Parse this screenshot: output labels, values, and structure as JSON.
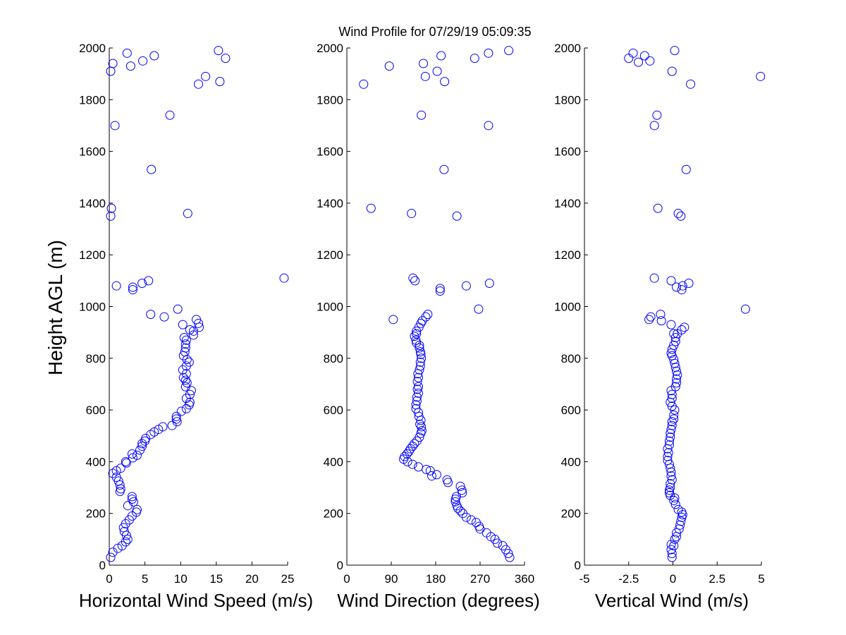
{
  "figure": {
    "title": "Wind Profile for  07/29/19 05:09:35",
    "ylabel": "Height AGL (m)"
  },
  "chart_data": [
    {
      "type": "scatter",
      "id": "speed",
      "xlabel": "Horizontal Wind Speed (m/s)",
      "ylabel": "Height AGL (m)",
      "xlim": [
        0,
        25
      ],
      "ylim": [
        0,
        2000
      ],
      "xticks": [
        0,
        5,
        10,
        15,
        20,
        25
      ],
      "xticklabels": [
        "0",
        "5",
        "10",
        "15",
        "20",
        "25"
      ],
      "yticks": [
        0,
        200,
        400,
        600,
        800,
        1000,
        1200,
        1400,
        1600,
        1800,
        2000
      ],
      "yticklabels": [
        "0",
        "200",
        "400",
        "600",
        "800",
        "1000",
        "1200",
        "1400",
        "1600",
        "1800",
        "2000"
      ],
      "points": [
        [
          0.2,
          30
        ],
        [
          0.5,
          50
        ],
        [
          1.2,
          65
        ],
        [
          1.8,
          75
        ],
        [
          2.3,
          90
        ],
        [
          2.6,
          100
        ],
        [
          2.4,
          115
        ],
        [
          2.1,
          130
        ],
        [
          2.0,
          145
        ],
        [
          2.3,
          160
        ],
        [
          2.8,
          175
        ],
        [
          3.2,
          190
        ],
        [
          3.8,
          205
        ],
        [
          3.9,
          215
        ],
        [
          2.6,
          230
        ],
        [
          3.4,
          245
        ],
        [
          3.2,
          255
        ],
        [
          3.2,
          265
        ],
        [
          1.5,
          285
        ],
        [
          1.6,
          295
        ],
        [
          1.5,
          310
        ],
        [
          1.3,
          325
        ],
        [
          1.0,
          340
        ],
        [
          0.5,
          355
        ],
        [
          1.0,
          365
        ],
        [
          1.6,
          375
        ],
        [
          2.4,
          395
        ],
        [
          2.3,
          400
        ],
        [
          3.3,
          415
        ],
        [
          3.9,
          425
        ],
        [
          3.2,
          430
        ],
        [
          4.3,
          445
        ],
        [
          4.6,
          460
        ],
        [
          4.6,
          470
        ],
        [
          5.0,
          480
        ],
        [
          5.1,
          490
        ],
        [
          5.8,
          505
        ],
        [
          6.3,
          515
        ],
        [
          6.9,
          525
        ],
        [
          7.5,
          535
        ],
        [
          8.8,
          540
        ],
        [
          9.5,
          555
        ],
        [
          9.4,
          565
        ],
        [
          9.4,
          575
        ],
        [
          10.1,
          595
        ],
        [
          10.8,
          605
        ],
        [
          11.2,
          620
        ],
        [
          11.3,
          630
        ],
        [
          10.8,
          645
        ],
        [
          11.3,
          660
        ],
        [
          11.5,
          675
        ],
        [
          10.7,
          690
        ],
        [
          10.9,
          705
        ],
        [
          10.7,
          715
        ],
        [
          10.4,
          725
        ],
        [
          10.8,
          740
        ],
        [
          10.3,
          755
        ],
        [
          10.8,
          770
        ],
        [
          11.2,
          785
        ],
        [
          10.9,
          795
        ],
        [
          10.4,
          810
        ],
        [
          10.6,
          825
        ],
        [
          10.7,
          840
        ],
        [
          10.7,
          855
        ],
        [
          10.8,
          870
        ],
        [
          10.5,
          880
        ],
        [
          11.8,
          890
        ],
        [
          11.8,
          905
        ],
        [
          11.3,
          910
        ],
        [
          10.3,
          930
        ],
        [
          12.2,
          950
        ],
        [
          12.5,
          935
        ],
        [
          12.6,
          920
        ],
        [
          7.7,
          960
        ],
        [
          5.8,
          970
        ],
        [
          9.6,
          990
        ],
        [
          3.3,
          1065
        ],
        [
          3.3,
          1075
        ],
        [
          1.0,
          1080
        ],
        [
          4.6,
          1090
        ],
        [
          5.5,
          1100
        ],
        [
          24.5,
          1110
        ],
        [
          0.2,
          1350
        ],
        [
          11.0,
          1360
        ],
        [
          0.3,
          1380
        ],
        [
          5.9,
          1530
        ],
        [
          0.8,
          1700
        ],
        [
          8.5,
          1740
        ],
        [
          12.5,
          1860
        ],
        [
          15.5,
          1870
        ],
        [
          13.5,
          1890
        ],
        [
          0.2,
          1910
        ],
        [
          3.0,
          1930
        ],
        [
          0.5,
          1940
        ],
        [
          4.7,
          1950
        ],
        [
          16.3,
          1960
        ],
        [
          6.3,
          1970
        ],
        [
          2.5,
          1980
        ],
        [
          15.3,
          1990
        ]
      ]
    },
    {
      "type": "scatter",
      "id": "direction",
      "xlabel": "Wind Direction (degrees)",
      "ylabel": "",
      "xlim": [
        0,
        360
      ],
      "ylim": [
        0,
        2000
      ],
      "xticks": [
        0,
        90,
        180,
        270,
        360
      ],
      "xticklabels": [
        "0",
        "90",
        "180",
        "270",
        "360"
      ],
      "yticks": [
        0,
        200,
        400,
        600,
        800,
        1000,
        1200,
        1400,
        1600,
        1800,
        2000
      ],
      "yticklabels": [
        "0",
        "200",
        "400",
        "600",
        "800",
        "1000",
        "1200",
        "1400",
        "1600",
        "1800",
        "2000"
      ],
      "points": [
        [
          330,
          30
        ],
        [
          327,
          45
        ],
        [
          322,
          60
        ],
        [
          316,
          75
        ],
        [
          305,
          85
        ],
        [
          300,
          100
        ],
        [
          292,
          110
        ],
        [
          283,
          125
        ],
        [
          270,
          140
        ],
        [
          268,
          150
        ],
        [
          262,
          165
        ],
        [
          252,
          175
        ],
        [
          242,
          185
        ],
        [
          235,
          200
        ],
        [
          230,
          210
        ],
        [
          225,
          220
        ],
        [
          223,
          230
        ],
        [
          220,
          245
        ],
        [
          220,
          255
        ],
        [
          222,
          265
        ],
        [
          234,
          280
        ],
        [
          233,
          290
        ],
        [
          230,
          305
        ],
        [
          205,
          320
        ],
        [
          203,
          330
        ],
        [
          172,
          345
        ],
        [
          182,
          350
        ],
        [
          169,
          365
        ],
        [
          161,
          370
        ],
        [
          145,
          380
        ],
        [
          133,
          390
        ],
        [
          123,
          400
        ],
        [
          115,
          410
        ],
        [
          117,
          420
        ],
        [
          122,
          430
        ],
        [
          126,
          440
        ],
        [
          129,
          450
        ],
        [
          133,
          460
        ],
        [
          137,
          470
        ],
        [
          142,
          480
        ],
        [
          147,
          495
        ],
        [
          150,
          510
        ],
        [
          152,
          520
        ],
        [
          151,
          535
        ],
        [
          148,
          545
        ],
        [
          150,
          560
        ],
        [
          146,
          575
        ],
        [
          145,
          590
        ],
        [
          140,
          605
        ],
        [
          140,
          620
        ],
        [
          142,
          635
        ],
        [
          142,
          650
        ],
        [
          145,
          665
        ],
        [
          143,
          680
        ],
        [
          145,
          690
        ],
        [
          143,
          710
        ],
        [
          145,
          725
        ],
        [
          144,
          740
        ],
        [
          147,
          755
        ],
        [
          149,
          770
        ],
        [
          149,
          785
        ],
        [
          151,
          800
        ],
        [
          150,
          815
        ],
        [
          149,
          825
        ],
        [
          147,
          840
        ],
        [
          147,
          850
        ],
        [
          141,
          860
        ],
        [
          140,
          870
        ],
        [
          137,
          885
        ],
        [
          141,
          895
        ],
        [
          141,
          905
        ],
        [
          146,
          920
        ],
        [
          150,
          935
        ],
        [
          153,
          945
        ],
        [
          160,
          960
        ],
        [
          164,
          970
        ],
        [
          94,
          950
        ],
        [
          267,
          990
        ],
        [
          189,
          1060
        ],
        [
          189,
          1070
        ],
        [
          242,
          1080
        ],
        [
          289,
          1090
        ],
        [
          138,
          1100
        ],
        [
          134,
          1110
        ],
        [
          223,
          1350
        ],
        [
          131,
          1360
        ],
        [
          49,
          1380
        ],
        [
          197,
          1530
        ],
        [
          287,
          1700
        ],
        [
          151,
          1740
        ],
        [
          34,
          1860
        ],
        [
          198,
          1870
        ],
        [
          159,
          1890
        ],
        [
          183,
          1910
        ],
        [
          86,
          1930
        ],
        [
          155,
          1940
        ],
        [
          259,
          1960
        ],
        [
          191,
          1970
        ],
        [
          287,
          1980
        ],
        [
          328,
          1990
        ]
      ]
    },
    {
      "type": "scatter",
      "id": "vertical",
      "xlabel": "Vertical Wind (m/s)",
      "ylabel": "",
      "xlim": [
        -5,
        5
      ],
      "ylim": [
        0,
        2000
      ],
      "xticks": [
        -5,
        -2.5,
        0,
        2.5,
        5
      ],
      "xticklabels": [
        "-5",
        "-2.5",
        "0",
        "2.5",
        "5"
      ],
      "yticks": [
        0,
        200,
        400,
        600,
        800,
        1000,
        1200,
        1400,
        1600,
        1800,
        2000
      ],
      "yticklabels": [
        "0",
        "200",
        "400",
        "600",
        "800",
        "1000",
        "1200",
        "1400",
        "1600",
        "1800",
        "2000"
      ],
      "points": [
        [
          -0.05,
          30
        ],
        [
          -0.05,
          45
        ],
        [
          -0.1,
          60
        ],
        [
          -0.1,
          80
        ],
        [
          0.05,
          75
        ],
        [
          0.1,
          100
        ],
        [
          0.2,
          110
        ],
        [
          0.2,
          125
        ],
        [
          0.35,
          140
        ],
        [
          0.4,
          155
        ],
        [
          0.45,
          170
        ],
        [
          0.5,
          185
        ],
        [
          0.55,
          195
        ],
        [
          0.5,
          205
        ],
        [
          0.3,
          215
        ],
        [
          0.15,
          235
        ],
        [
          0.05,
          250
        ],
        [
          0.1,
          260
        ],
        [
          -0.15,
          270
        ],
        [
          -0.2,
          280
        ],
        [
          -0.2,
          290
        ],
        [
          -0.15,
          300
        ],
        [
          -0.15,
          315
        ],
        [
          -0.05,
          330
        ],
        [
          -0.1,
          345
        ],
        [
          -0.1,
          360
        ],
        [
          -0.15,
          375
        ],
        [
          -0.2,
          390
        ],
        [
          -0.3,
          405
        ],
        [
          -0.3,
          420
        ],
        [
          -0.25,
          435
        ],
        [
          -0.3,
          450
        ],
        [
          -0.2,
          465
        ],
        [
          -0.2,
          480
        ],
        [
          -0.15,
          495
        ],
        [
          -0.15,
          510
        ],
        [
          -0.1,
          525
        ],
        [
          -0.05,
          540
        ],
        [
          -0.05,
          555
        ],
        [
          0.05,
          565
        ],
        [
          0.05,
          580
        ],
        [
          0.1,
          600
        ],
        [
          -0.05,
          615
        ],
        [
          -0.15,
          630
        ],
        [
          -0.05,
          645
        ],
        [
          -0.05,
          660
        ],
        [
          -0.1,
          675
        ],
        [
          0.15,
          690
        ],
        [
          0.2,
          705
        ],
        [
          0.2,
          720
        ],
        [
          0.25,
          735
        ],
        [
          0.2,
          750
        ],
        [
          0.15,
          765
        ],
        [
          0.1,
          780
        ],
        [
          0.05,
          795
        ],
        [
          -0.05,
          810
        ],
        [
          -0.1,
          820
        ],
        [
          -0.05,
          835
        ],
        [
          0.05,
          850
        ],
        [
          0.15,
          865
        ],
        [
          0.15,
          880
        ],
        [
          0.05,
          895
        ],
        [
          0.25,
          895
        ],
        [
          0.5,
          910
        ],
        [
          0.65,
          920
        ],
        [
          -0.1,
          930
        ],
        [
          -0.65,
          945
        ],
        [
          -1.35,
          950
        ],
        [
          -1.25,
          960
        ],
        [
          -0.7,
          970
        ],
        [
          4.1,
          990
        ],
        [
          0.5,
          1065
        ],
        [
          0.2,
          1075
        ],
        [
          0.55,
          1080
        ],
        [
          0.9,
          1090
        ],
        [
          -0.1,
          1100
        ],
        [
          -1.05,
          1110
        ],
        [
          0.45,
          1350
        ],
        [
          0.3,
          1360
        ],
        [
          -0.85,
          1380
        ],
        [
          0.75,
          1530
        ],
        [
          -1.05,
          1700
        ],
        [
          -0.9,
          1740
        ],
        [
          1.0,
          1860
        ],
        [
          4.95,
          1890
        ],
        [
          -0.05,
          1910
        ],
        [
          -2.5,
          1960
        ],
        [
          -1.3,
          1950
        ],
        [
          -1.95,
          1945
        ],
        [
          -1.6,
          1970
        ],
        [
          -2.25,
          1980
        ],
        [
          0.1,
          1990
        ]
      ]
    }
  ]
}
